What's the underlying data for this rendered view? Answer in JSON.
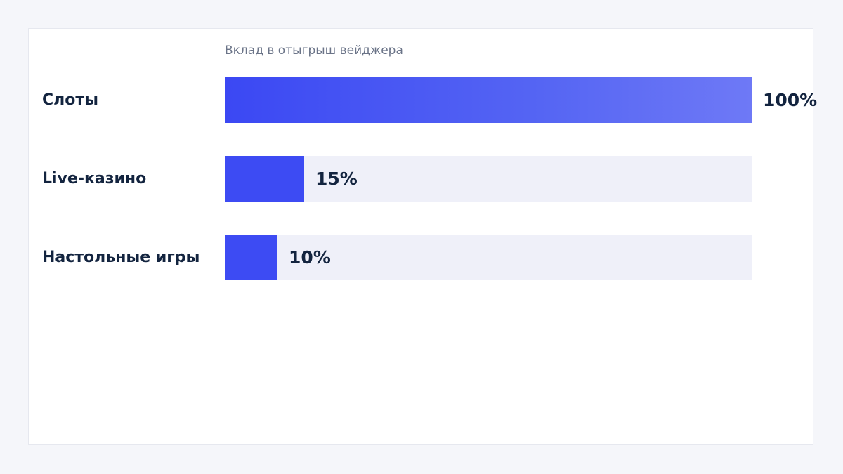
{
  "chart_data": {
    "type": "bar",
    "orientation": "horizontal",
    "title": "",
    "subtitle": "Вклад в отыгрыш вейджера",
    "xlabel": "",
    "ylabel": "",
    "xlim": [
      0,
      100
    ],
    "grid": false,
    "categories": [
      "Слоты",
      "Live-казино",
      "Настольные игры"
    ],
    "values": [
      100,
      15,
      10
    ],
    "value_labels": [
      "100%",
      "15%",
      "10%"
    ],
    "colors": {
      "bar": "#3d4bf3",
      "bar_gradient_end": "#6e79f6",
      "track": "#eff0f9",
      "label": "#13243f",
      "subtitle": "#6b7488"
    }
  }
}
